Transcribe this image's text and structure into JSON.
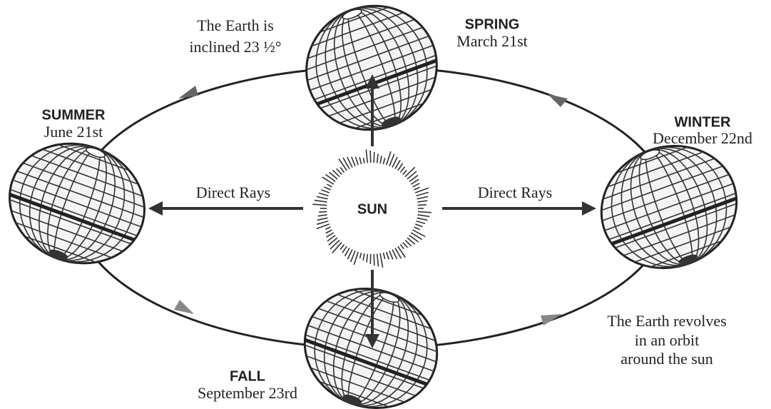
{
  "sun": {
    "label": "SUN"
  },
  "seasons": [
    {
      "name": "SPRING",
      "date": "March 21st"
    },
    {
      "name": "SUMMER",
      "date": "June 21st"
    },
    {
      "name": "WINTER",
      "date": "December 22nd"
    },
    {
      "name": "FALL",
      "date": "September 23rd"
    }
  ],
  "rays": [
    "Direct Rays",
    "Direct Rays"
  ],
  "notes": {
    "inclination": [
      "The Earth is",
      "inclined 23 ½°"
    ],
    "orbit": [
      "The Earth revolves",
      "in an orbit",
      "around the sun"
    ]
  }
}
